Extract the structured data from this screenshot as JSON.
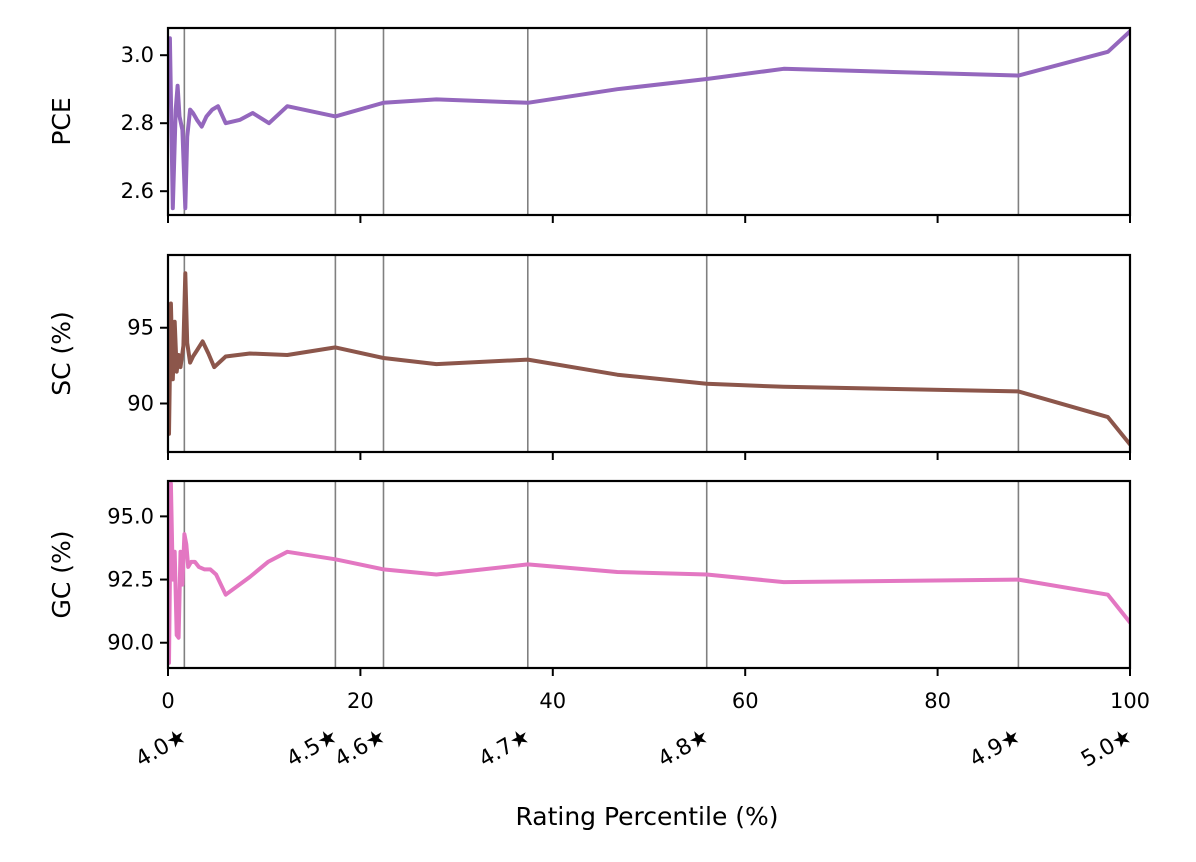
{
  "chart_data": {
    "type": "line",
    "xlabel": "Rating Percentile (%)",
    "xlim": [
      0,
      100
    ],
    "x_ticks": [
      0,
      20,
      40,
      60,
      80,
      100
    ],
    "grid": false,
    "legend": "none",
    "rating_markers": [
      {
        "label": "4.0★",
        "x": 1.7
      },
      {
        "label": "4.5★",
        "x": 17.4
      },
      {
        "label": "4.6★",
        "x": 22.4
      },
      {
        "label": "4.7★",
        "x": 37.4
      },
      {
        "label": "4.8★",
        "x": 56.0
      },
      {
        "label": "4.9★",
        "x": 88.4
      },
      {
        "label": "5.0★",
        "x": 100
      }
    ],
    "panels": [
      {
        "ylabel": "PCE",
        "ylim": [
          2.53,
          3.08
        ],
        "y_ticks": [
          2.6,
          2.8,
          3.0
        ],
        "y_tick_labels": [
          "2.6",
          "2.8",
          "3.0"
        ],
        "color": "#9467bd",
        "x": [
          0.2,
          0.5,
          0.8,
          1.0,
          1.2,
          1.5,
          1.8,
          2.0,
          2.3,
          2.6,
          3.0,
          3.5,
          4.0,
          4.6,
          5.2,
          6.0,
          7.5,
          8.8,
          10.5,
          12.4,
          17.4,
          22.4,
          27.9,
          37.4,
          46.7,
          56.0,
          64.0,
          88.4,
          97.7,
          100
        ],
        "values": [
          3.05,
          2.55,
          2.84,
          2.91,
          2.82,
          2.78,
          2.55,
          2.76,
          2.84,
          2.83,
          2.81,
          2.79,
          2.82,
          2.84,
          2.85,
          2.8,
          2.81,
          2.83,
          2.8,
          2.85,
          2.82,
          2.86,
          2.87,
          2.86,
          2.9,
          2.93,
          2.96,
          2.94,
          3.01,
          3.07
        ]
      },
      {
        "ylabel": "SC (%)",
        "ylim": [
          86.8,
          99.8
        ],
        "y_ticks": [
          90,
          95
        ],
        "y_tick_labels": [
          "90",
          "95"
        ],
        "color": "#8c564b",
        "x": [
          0.1,
          0.3,
          0.5,
          0.7,
          0.9,
          1.1,
          1.3,
          1.6,
          1.8,
          2.0,
          2.3,
          2.6,
          3.0,
          3.6,
          4.2,
          4.8,
          6.0,
          8.5,
          12.4,
          17.4,
          22.4,
          27.9,
          37.4,
          46.7,
          56.0,
          64.0,
          88.4,
          97.7,
          100
        ],
        "values": [
          88.0,
          96.6,
          91.6,
          95.4,
          92.1,
          93.2,
          92.4,
          93.8,
          98.6,
          94.0,
          92.7,
          93.1,
          93.5,
          94.1,
          93.3,
          92.4,
          93.1,
          93.3,
          93.2,
          93.7,
          93.0,
          92.6,
          92.9,
          91.9,
          91.3,
          91.1,
          90.8,
          89.1,
          87.3
        ]
      },
      {
        "ylabel": "GC (%)",
        "ylim": [
          89.0,
          96.4
        ],
        "y_ticks": [
          90.0,
          92.5,
          95.0
        ],
        "y_tick_labels": [
          "90.0",
          "92.5",
          "95.0"
        ],
        "color": "#e377c2",
        "x": [
          0.1,
          0.3,
          0.5,
          0.7,
          0.9,
          1.1,
          1.3,
          1.5,
          1.7,
          1.9,
          2.1,
          2.4,
          2.8,
          3.2,
          3.8,
          4.4,
          5.0,
          6.0,
          8.5,
          10.4,
          12.4,
          17.4,
          22.4,
          27.9,
          37.4,
          46.7,
          56.0,
          64.0,
          88.4,
          97.7,
          100
        ],
        "values": [
          89.2,
          96.3,
          92.5,
          93.6,
          90.3,
          90.2,
          93.6,
          92.3,
          94.3,
          93.9,
          93.0,
          93.2,
          93.2,
          93.0,
          92.9,
          92.9,
          92.7,
          91.9,
          92.6,
          93.2,
          93.6,
          93.3,
          92.9,
          92.7,
          93.1,
          92.8,
          92.7,
          92.4,
          92.5,
          91.9,
          90.8
        ]
      }
    ]
  }
}
